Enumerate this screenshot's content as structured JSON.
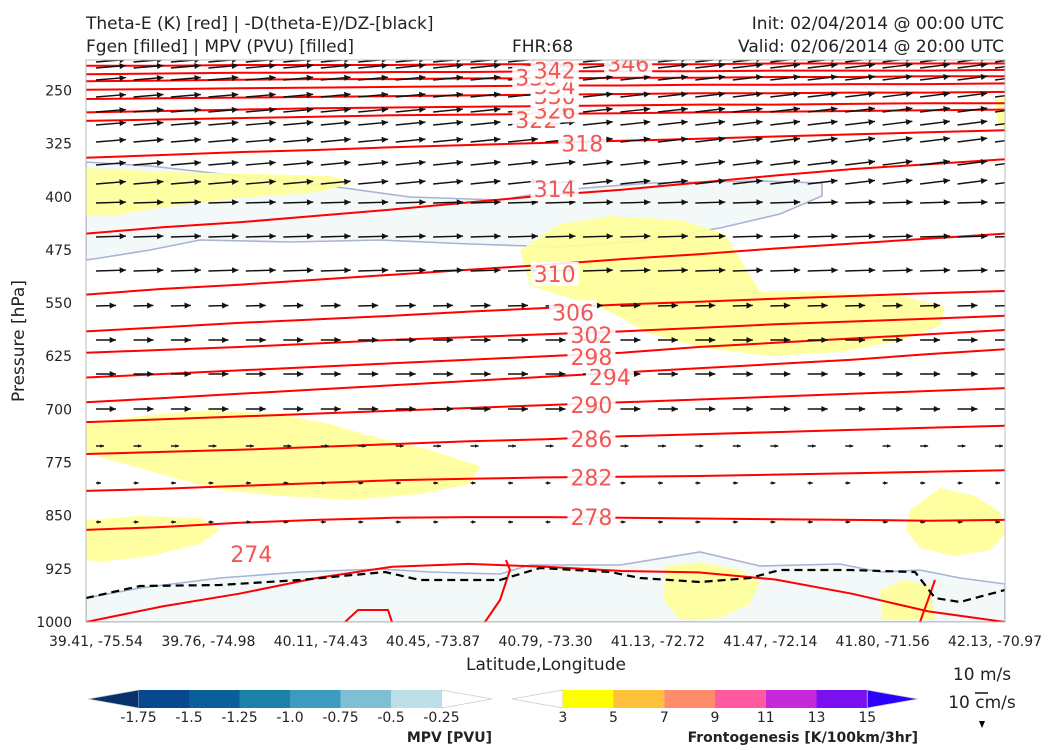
{
  "header": {
    "title_left_1": "Theta-E (K) [red] | -D(theta-E)/DZ-[black]",
    "title_left_2": "Fgen [filled] | MPV (PVU) [filled]",
    "fhr": "FHR:68",
    "init": "Init: 02/04/2014 @ 00:00 UTC",
    "valid": "Valid: 02/06/2014 @ 20:00 UTC"
  },
  "chart_data": {
    "type": "cross-section",
    "xlabel": "Latitude,Longitude",
    "ylabel": "Pressure [hPa]",
    "ylim": [
      1000,
      200
    ],
    "y_ticks": [
      1000,
      925,
      850,
      775,
      700,
      625,
      550,
      475,
      400,
      325,
      250
    ],
    "x_ticks": [
      "39.41, -75.54",
      "39.76, -74.98",
      "40.11, -74.43",
      "40.45, -73.87",
      "40.79, -73.30",
      "41.13, -72.72",
      "41.47, -72.14",
      "41.80, -71.56",
      "42.13, -70.97"
    ],
    "theta_e_color": "#ff0000",
    "theta_e_label_color": "#f25757",
    "theta_e_lines": [
      {
        "label": "274",
        "p": [
          1000,
          978,
          960,
          938,
          922,
          918,
          922,
          928,
          930,
          940,
          960,
          985,
          1000
        ],
        "labels": [
          {
            "pos": 0.18,
            "p": 904
          }
        ]
      },
      {
        "label": "278",
        "p": [
          870,
          866,
          860,
          856,
          853,
          852,
          852,
          853,
          854,
          855,
          856,
          857,
          856
        ],
        "labels": [
          {
            "pos": 0.55,
            "p": 852
          }
        ]
      },
      {
        "label": "282",
        "p": [
          815,
          812,
          808,
          804,
          800,
          798,
          796,
          795,
          794,
          792,
          790,
          788,
          786
        ],
        "labels": [
          {
            "pos": 0.55,
            "p": 796
          }
        ]
      },
      {
        "label": "286",
        "p": [
          763,
          760,
          757,
          753,
          749,
          745,
          742,
          738,
          735,
          732,
          729,
          726,
          723
        ],
        "labels": [
          {
            "pos": 0.55,
            "p": 742
          }
        ]
      },
      {
        "label": "290",
        "p": [
          718,
          714,
          710,
          706,
          702,
          698,
          694,
          690,
          686,
          682,
          678,
          674,
          670
        ],
        "labels": [
          {
            "pos": 0.55,
            "p": 694
          }
        ]
      },
      {
        "label": "294",
        "p": [
          690,
          684,
          678,
          672,
          666,
          660,
          654,
          648,
          642,
          636,
          630,
          622,
          615
        ],
        "labels": [
          {
            "pos": 0.57,
            "p": 654
          }
        ]
      },
      {
        "label": "298",
        "p": [
          655,
          650,
          645,
          640,
          635,
          630,
          625,
          620,
          612,
          606,
          600,
          594,
          588
        ],
        "labels": [
          {
            "pos": 0.55,
            "p": 626
          }
        ]
      },
      {
        "label": "302",
        "p": [
          620,
          616,
          612,
          607,
          602,
          598,
          594,
          590,
          585,
          580,
          576,
          572,
          568
        ],
        "labels": [
          {
            "pos": 0.55,
            "p": 595
          }
        ]
      },
      {
        "label": "306",
        "p": [
          590,
          584,
          578,
          573,
          568,
          562,
          557,
          552,
          548,
          544,
          540,
          536,
          533
        ],
        "labels": [
          {
            "pos": 0.53,
            "p": 563
          }
        ]
      },
      {
        "label": "310",
        "p": [
          538,
          530,
          524,
          517,
          510,
          503,
          496,
          488,
          481,
          473,
          466,
          459,
          452
        ],
        "labels": [
          {
            "pos": 0.51,
            "p": 509
          }
        ]
      },
      {
        "label": "314",
        "p": [
          452,
          443,
          436,
          427,
          418,
          408,
          398,
          390,
          380,
          370,
          361,
          354,
          347
        ],
        "labels": [
          {
            "pos": 0.51,
            "p": 389
          }
        ]
      },
      {
        "label": "318",
        "p": [
          345,
          341,
          337,
          334,
          330,
          327,
          324,
          321,
          318,
          315,
          312,
          309,
          306
        ],
        "labels": [
          {
            "pos": 0.54,
            "p": 325
          }
        ]
      },
      {
        "label": "322",
        "p": [
          293,
          291,
          289,
          287,
          285,
          284,
          283,
          282,
          281,
          280,
          279,
          278,
          277
        ],
        "labels": [
          {
            "pos": 0.49,
            "p": 292
          }
        ]
      },
      {
        "label": "326",
        "p": [
          281,
          279,
          277,
          275,
          274,
          273,
          272,
          271,
          270,
          270,
          269,
          268,
          268
        ],
        "labels": [
          {
            "pos": 0.51,
            "p": 278
          }
        ]
      },
      {
        "label": "330",
        "p": [
          262,
          261,
          260,
          259,
          258,
          257,
          256,
          255,
          254,
          254,
          253,
          253,
          252
        ],
        "labels": [
          {
            "pos": 0.51,
            "p": 258
          }
        ]
      },
      {
        "label": "334",
        "p": [
          249,
          248,
          247,
          246,
          245,
          244,
          243,
          243,
          242,
          242,
          241,
          241,
          240
        ],
        "labels": [
          {
            "pos": 0.51,
            "p": 244
          }
        ]
      },
      {
        "label": "338",
        "p": [
          237,
          236,
          235,
          234,
          234,
          233,
          233,
          232,
          232,
          231,
          231,
          230,
          230
        ],
        "labels": [
          {
            "pos": 0.49,
            "p": 232
          }
        ]
      },
      {
        "label": "342",
        "p": [
          227,
          226,
          225,
          225,
          224,
          224,
          223,
          223,
          223,
          222,
          222,
          222,
          221
        ],
        "labels": [
          {
            "pos": 0.51,
            "p": 222
          }
        ]
      },
      {
        "label": "346",
        "p": [
          215,
          215,
          214,
          214,
          214,
          213,
          213,
          213,
          213,
          212,
          212,
          212,
          212
        ],
        "labels": [
          {
            "pos": 0.59,
            "p": 212
          }
        ]
      }
    ],
    "mpv_colorbar": {
      "title": "MPV [PVU]",
      "ticks": [
        "-1.75",
        "-1.5",
        "-1.25",
        "-1.0",
        "-0.75",
        "-0.5",
        "-0.25"
      ],
      "colors": [
        "#08306b",
        "#08488e",
        "#0a5f9b",
        "#1c81a8",
        "#3b9bc0",
        "#7fbfd4",
        "#bde0e8",
        "#ffffff"
      ]
    },
    "fgen_colorbar": {
      "title": "Frontogenesis [K/100km/3hr]",
      "ticks": [
        "3",
        "5",
        "7",
        "9",
        "11",
        "13",
        "15"
      ],
      "colors": [
        "#ffffff",
        "#ffff00",
        "#ffc03c",
        "#ff8c6a",
        "#ff5aa0",
        "#c829d8",
        "#7a10f0",
        "#2a00ff"
      ]
    },
    "wind_key": {
      "label_1": "10 m/s",
      "label_2": "10 cm/s"
    }
  }
}
